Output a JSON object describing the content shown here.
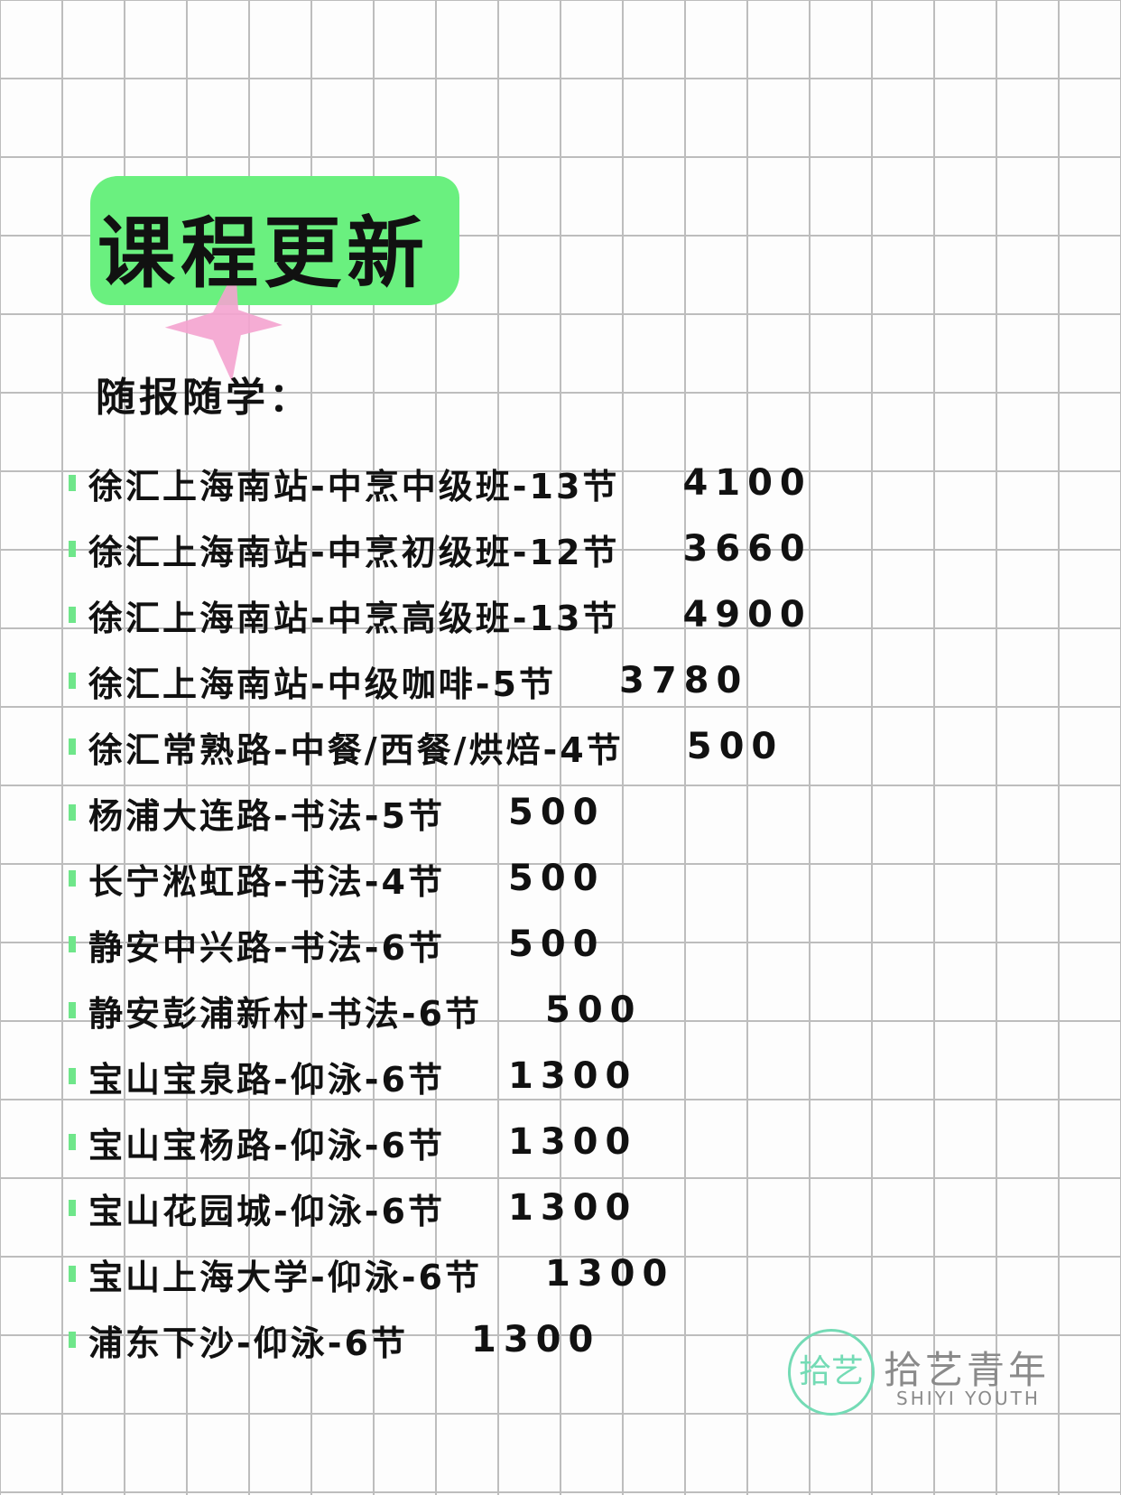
{
  "header": {
    "title": "课程更新",
    "subtitle": "随报随学："
  },
  "accent_color": "#6af07f",
  "star_color": "#f4a3cf",
  "courses": [
    {
      "name": "徐汇上海南站-中烹中级班-13节",
      "price": "4100"
    },
    {
      "name": "徐汇上海南站-中烹初级班-12节",
      "price": "3660"
    },
    {
      "name": "徐汇上海南站-中烹高级班-13节",
      "price": "4900"
    },
    {
      "name": "徐汇上海南站-中级咖啡-5节",
      "price": "3780"
    },
    {
      "name": "徐汇常熟路-中餐/西餐/烘焙-4节",
      "price": "500"
    },
    {
      "name": "杨浦大连路-书法-5节",
      "price": "500"
    },
    {
      "name": "长宁淞虹路-书法-4节",
      "price": "500"
    },
    {
      "name": "静安中兴路-书法-6节",
      "price": "500"
    },
    {
      "name": "静安彭浦新村-书法-6节",
      "price": "500"
    },
    {
      "name": "宝山宝泉路-仰泳-6节",
      "price": "1300"
    },
    {
      "name": "宝山宝杨路-仰泳-6节",
      "price": "1300"
    },
    {
      "name": "宝山花园城-仰泳-6节",
      "price": "1300"
    },
    {
      "name": "宝山上海大学-仰泳-6节",
      "price": "1300"
    },
    {
      "name": "浦东下沙-仰泳-6节",
      "price": "1300"
    }
  ],
  "brand": {
    "logo_text": "拾艺",
    "name_cn": "拾艺青年",
    "name_en": "SHIYI YOUTH",
    "logo_color": "#74dbb5"
  }
}
